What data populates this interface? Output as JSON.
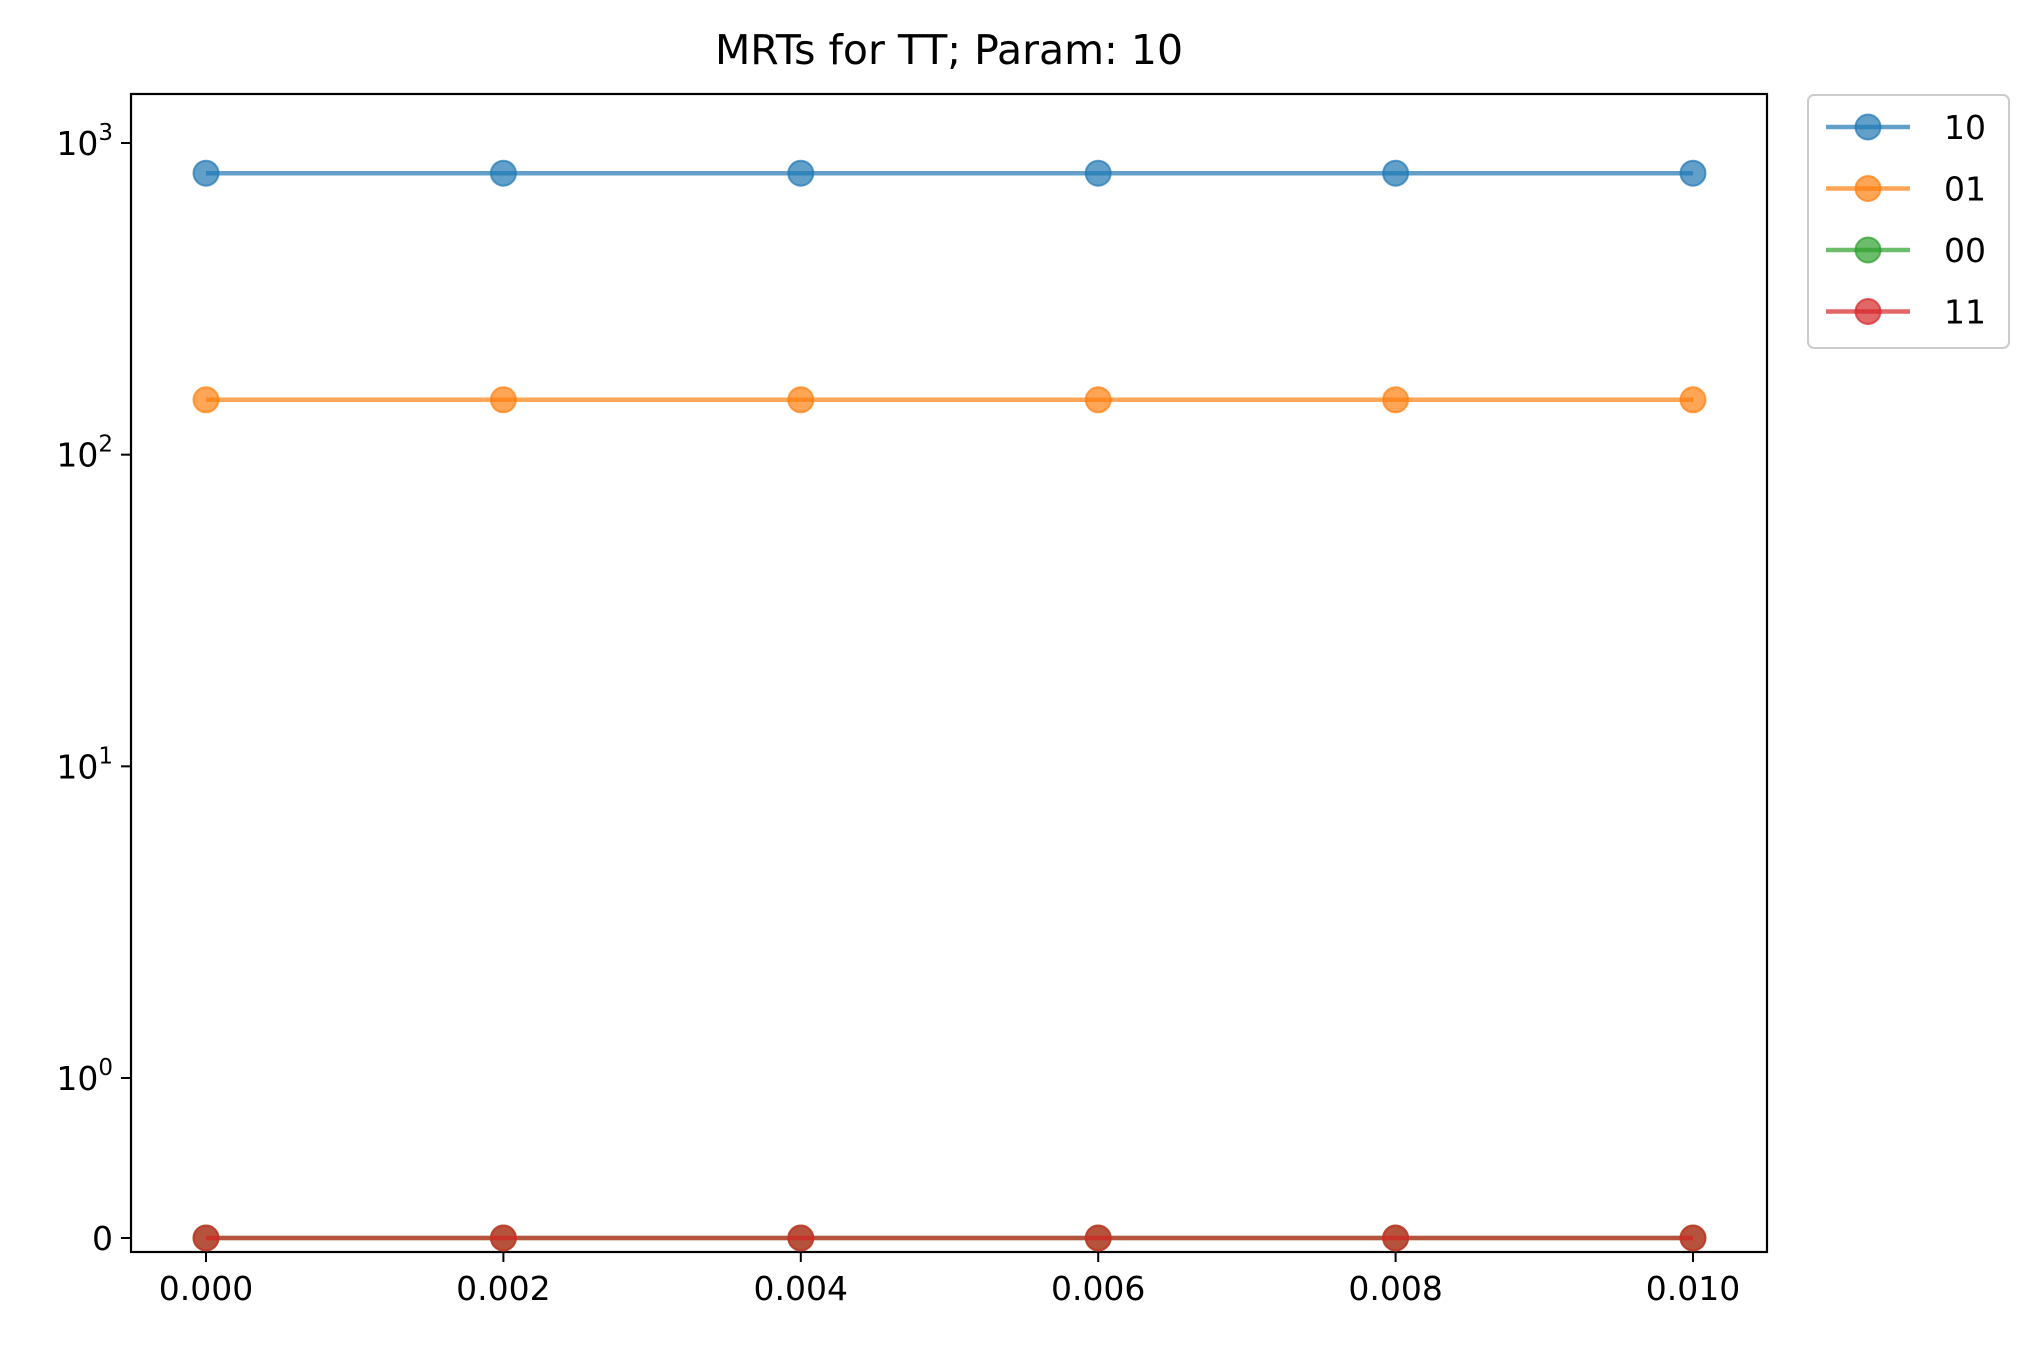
{
  "chart_data": {
    "type": "line",
    "title": "MRTs for TT; Param: 10",
    "xlabel": "",
    "ylabel": "",
    "y_scale": "symlog",
    "x": [
      0.0,
      0.002,
      0.004,
      0.006,
      0.008,
      0.01
    ],
    "x_tick_labels": [
      "0.000",
      "0.002",
      "0.004",
      "0.006",
      "0.008",
      "0.010"
    ],
    "y_ticks": [
      {
        "base": "10",
        "exp": "3"
      },
      {
        "base": "10",
        "exp": "2"
      },
      {
        "base": "10",
        "exp": "1"
      },
      {
        "base": "10",
        "exp": "0"
      },
      {
        "base": "0",
        "exp": ""
      }
    ],
    "y_tick_values": [
      1000,
      100,
      10,
      1,
      0
    ],
    "grid": false,
    "legend_position": "outside-top-right",
    "series": [
      {
        "name": "10",
        "color": "#1f77b4",
        "values": [
          800,
          800,
          800,
          800,
          800,
          800
        ]
      },
      {
        "name": "01",
        "color": "#ff7f0e",
        "values": [
          150,
          150,
          150,
          150,
          150,
          150
        ]
      },
      {
        "name": "00",
        "color": "#2ca02c",
        "values": [
          0,
          0,
          0,
          0,
          0,
          0
        ]
      },
      {
        "name": "11",
        "color": "#d62728",
        "values": [
          0,
          0,
          0,
          0,
          0,
          0
        ]
      }
    ]
  }
}
